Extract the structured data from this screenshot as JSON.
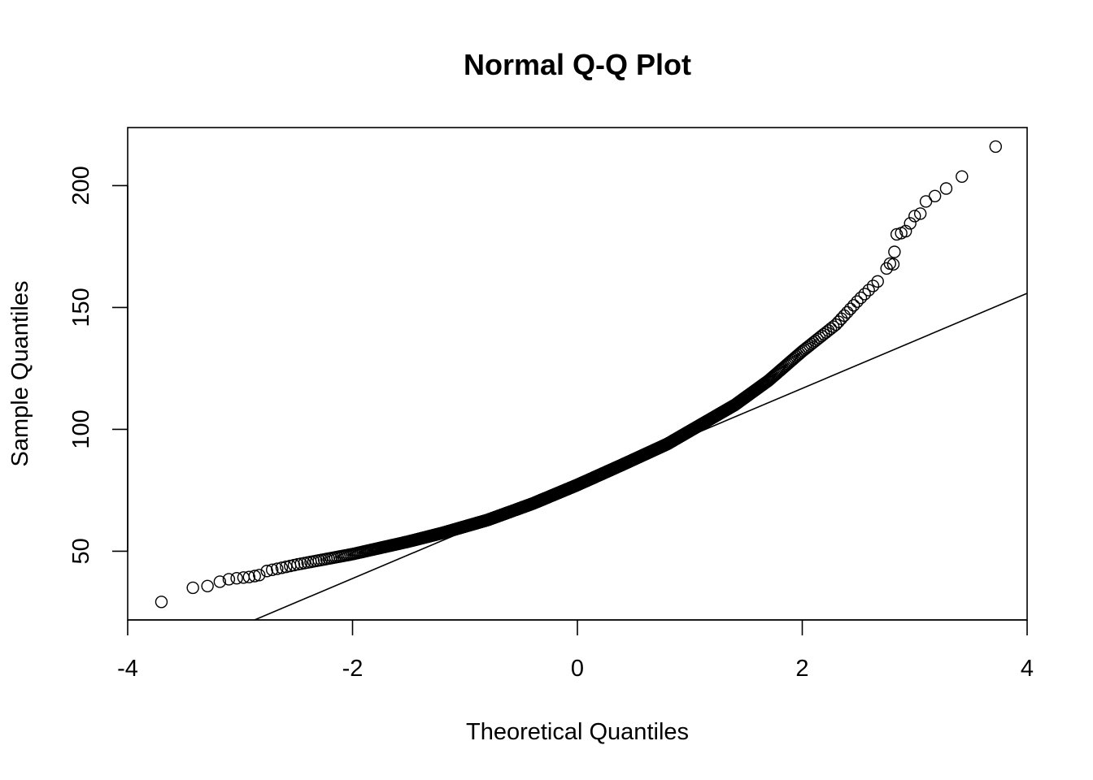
{
  "chart_data": {
    "type": "scatter",
    "title": "Normal Q-Q Plot",
    "xlabel": "Theoretical Quantiles",
    "ylabel": "Sample Quantiles",
    "xlim": [
      -4,
      4
    ],
    "ylim": [
      21.8,
      223.8
    ],
    "x_ticks": [
      -4,
      -2,
      0,
      2,
      4
    ],
    "x_tick_labels": [
      "-4",
      "-2",
      "0",
      "2",
      "4"
    ],
    "y_ticks": [
      50,
      100,
      150,
      200
    ],
    "y_tick_labels": [
      "50",
      "100",
      "150",
      "200"
    ],
    "grid": false,
    "legend": "none",
    "marker": "open-circle",
    "reference_line": {
      "intercept": 77.8,
      "slope": 19.5
    },
    "sample": {
      "n": 1200,
      "theoretical_range": [
        -3.7,
        3.7
      ],
      "curve_points": [
        [
          -2.8,
          41.5
        ],
        [
          -2.5,
          44.5
        ],
        [
          -2.0,
          48.8
        ],
        [
          -1.5,
          54.0
        ],
        [
          -1.2,
          57.5
        ],
        [
          -0.8,
          62.8
        ],
        [
          -0.4,
          69.5
        ],
        [
          0.0,
          77.2
        ],
        [
          0.4,
          85.5
        ],
        [
          0.8,
          94.0
        ],
        [
          1.1,
          102.0
        ],
        [
          1.4,
          110.0
        ],
        [
          1.7,
          120.0
        ],
        [
          2.0,
          132.0
        ],
        [
          2.3,
          143.0
        ],
        [
          2.5,
          153.0
        ],
        [
          2.7,
          162.0
        ]
      ]
    },
    "tail_points": [
      [
        -3.7,
        29.2
      ],
      [
        -3.42,
        35.0
      ],
      [
        -3.29,
        35.7
      ],
      [
        -3.18,
        37.5
      ],
      [
        -3.1,
        38.5
      ],
      [
        -3.03,
        38.9
      ],
      [
        -2.97,
        39.2
      ],
      [
        -2.92,
        39.4
      ],
      [
        -2.87,
        39.8
      ],
      [
        -2.83,
        40.2
      ],
      [
        2.75,
        166.0
      ],
      [
        2.78,
        168.0
      ],
      [
        2.81,
        167.7
      ],
      [
        2.82,
        172.8
      ],
      [
        2.84,
        180.0
      ],
      [
        2.88,
        180.5
      ],
      [
        2.92,
        181.3
      ],
      [
        2.96,
        184.5
      ],
      [
        3.0,
        187.5
      ],
      [
        3.05,
        188.5
      ],
      [
        3.1,
        193.5
      ],
      [
        3.18,
        195.7
      ],
      [
        3.28,
        198.8
      ],
      [
        3.42,
        203.7
      ],
      [
        3.72,
        216.0
      ]
    ]
  }
}
